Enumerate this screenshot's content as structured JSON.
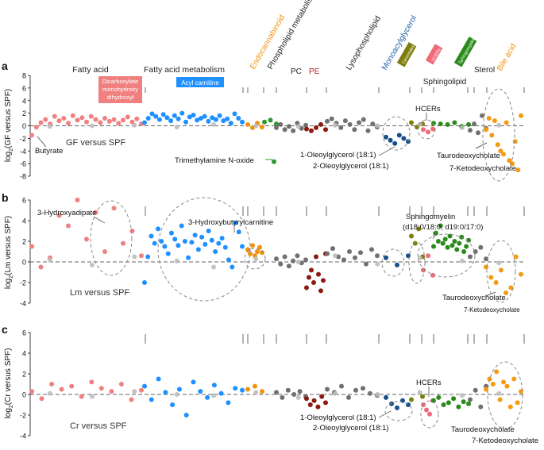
{
  "colors": {
    "fatty_acid": "#f08080",
    "fa_metabolism": "#1e90ff",
    "endocannabinoid": "#f0920f",
    "pc": "#707070",
    "pe": "#8b1a10",
    "lysophospholipid": "#707070",
    "monoacylglycerol": "#174f8a",
    "ceramide": "#7d7d0a",
    "hcer": "#f06a78",
    "sphingomyelin": "#2a8a1a",
    "sterol": "#707070",
    "bile_acid": "#f59a12",
    "other": "#bdbdbd",
    "highlight": "#2e9a2e"
  },
  "header": {
    "groups": [
      {
        "key": "fatty_acid",
        "label": "Fatty acid",
        "color": "#222222"
      },
      {
        "key": "fa_metabolism",
        "label": "Fatty acid metabolism",
        "color": "#222222"
      },
      {
        "key": "endocannabinoid",
        "label": "Endocannabinoid",
        "color": "#f0920f"
      },
      {
        "key": "phospholipid",
        "label": "Phospholipid metabolism",
        "color": "#222222"
      },
      {
        "key": "pc",
        "label": "PC",
        "color": "#222222"
      },
      {
        "key": "pe",
        "label": "PE",
        "color": "#b22222"
      },
      {
        "key": "lysophospholipid",
        "label": "Lysophospholipid",
        "color": "#222222"
      },
      {
        "key": "monoacylglycerol",
        "label": "Monoacylglycerol",
        "color": "#1f5fa8"
      },
      {
        "key": "sphingolipid",
        "label": "Sphingolipid",
        "color": "#222222"
      },
      {
        "key": "sterol",
        "label": "Sterol",
        "color": "#222222"
      },
      {
        "key": "bile_acid",
        "label": "Bile acid",
        "color": "#f0920f"
      }
    ],
    "boxes": [
      {
        "key": "dicarboxylate",
        "label": "Dicarboxylate monohydroxy dihydroxyl",
        "lines": [
          "Dicarboxylate",
          "monohydroxy",
          "dihydroxyl"
        ],
        "color": "#f08080"
      },
      {
        "key": "acyl_carnitine",
        "label": "Acyl carnitine",
        "color": "#1e90ff"
      },
      {
        "key": "ceramides",
        "label": "Ceramides",
        "color": "#7d7d0a"
      },
      {
        "key": "hcers",
        "label": "HCERs",
        "color": "#f06a78"
      },
      {
        "key": "sphingomyelins",
        "label": "Sphingomyelins",
        "color": "#2a8a1a"
      }
    ]
  },
  "chart_data": [
    {
      "panel": "a",
      "type": "scatter",
      "title": "GF versus SPF",
      "ylabel": "log2(GF versus SPF)",
      "ylabel_main": "log",
      "ylabel_sub": "2",
      "ylabel_rest": "(GF versus SPF)",
      "ylim": [
        -8,
        8
      ],
      "yticks": [
        -8,
        -6,
        -4,
        -2,
        0,
        2,
        4,
        6,
        8
      ],
      "annotations": [
        "Butyrate",
        "HCERs",
        "Trimethylamine N-oxide",
        "1-Oleoylglycerol (18:1)",
        "2-Oleoylglycerol (18:1)",
        "Taurodeoxycholate",
        "7-Ketodeoxycholate"
      ],
      "series": [
        {
          "name": "fatty_acid",
          "values": [
            -1.5,
            -0.2,
            0.5,
            1.0,
            0.3,
            1.5,
            0.8,
            1.2,
            0.4,
            1.6,
            0.9,
            1.3,
            0.6,
            1.5,
            1.0,
            0.5,
            1.2,
            0.7,
            1.0,
            0.4,
            0.9,
            1.4,
            0.6,
            1.1,
            0.3
          ]
        },
        {
          "name": "fa_metabolism",
          "values": [
            0.5,
            1.2,
            1.9,
            1.5,
            1.0,
            1.8,
            1.3,
            0.8,
            1.6,
            1.1,
            2.0,
            0.6,
            1.4,
            1.7,
            0.9,
            1.2,
            1.5,
            0.7,
            1.3,
            1.0,
            1.6,
            0.8,
            1.1,
            0.4,
            1.9,
            1.2,
            0.6
          ]
        },
        {
          "name": "endocannabinoid",
          "values": [
            0.2,
            -0.3,
            0.4,
            -0.2
          ]
        },
        {
          "name": "sphingomyelin_a",
          "values": [
            0.6,
            0.9,
            0.3
          ]
        },
        {
          "name": "pc",
          "values": [
            -0.3,
            0.2,
            -0.6,
            -0.1,
            -0.8,
            0.4,
            -0.4,
            0.1
          ]
        },
        {
          "name": "pe",
          "values": [
            -0.5,
            -0.8,
            -0.3,
            0.2,
            -0.6
          ]
        },
        {
          "name": "lysophospholipid",
          "values": [
            0.7,
            1.1,
            0.4,
            -0.3,
            0.8,
            0.2,
            -0.6,
            0.5,
            1.0,
            -0.8,
            0.3,
            -0.2
          ]
        },
        {
          "name": "monoacylglycerol",
          "values": [
            -1.8,
            -2.3,
            -2.8,
            -1.5,
            -2.0,
            -2.5
          ]
        },
        {
          "name": "ceramide",
          "values": [
            0.5,
            -0.2,
            0.3
          ]
        },
        {
          "name": "hcer",
          "values": [
            -0.6,
            -1.0,
            -0.5
          ]
        },
        {
          "name": "sphingomyelin",
          "values": [
            0.4,
            0.3,
            0.2,
            0.5,
            -0.1,
            0.2
          ]
        },
        {
          "name": "sterol",
          "values": [
            -0.7,
            0.3,
            -1.1,
            1.6,
            -0.4
          ]
        },
        {
          "name": "bile_acid",
          "values": [
            -0.6,
            1.2,
            -1.5,
            0.8,
            -3.0,
            -4.0,
            -4.5,
            0.5,
            -5.5,
            -6.0,
            -2.5,
            -7.0,
            1.6
          ]
        },
        {
          "name": "other",
          "values": [
            -0.1,
            0.0,
            0.1,
            -0.2,
            0.2,
            0.0,
            -0.1,
            0.1,
            0.0,
            0.2,
            -0.3,
            0.1
          ]
        },
        {
          "name": "tmao",
          "values": [
            -5.7
          ]
        }
      ]
    },
    {
      "panel": "b",
      "type": "scatter",
      "title": "Lm versus SPF",
      "ylabel": "log2(Lm versus SPF)",
      "ylabel_main": "log",
      "ylabel_sub": "2",
      "ylabel_rest": "(Lm versus SPF)",
      "ylim": [
        -4,
        6
      ],
      "yticks": [
        -4,
        -2,
        0,
        2,
        4,
        6
      ],
      "annotations": [
        "3-Hydroxyadipate",
        "3-Hydroxybutyrylcarnitine",
        "Sphingomyelin",
        "(d18:0/18:0, d19:0/17:0)",
        "Taurodeoxycholate",
        "7-Ketodeoxycholate"
      ],
      "series": [
        {
          "name": "fatty_acid",
          "values": [
            1.5,
            -0.5,
            0.4,
            4.5,
            3.5,
            6.0,
            2.2,
            4.8,
            1.0,
            5.2,
            1.8,
            3.0,
            0.6
          ]
        },
        {
          "name": "fa_metabolism",
          "values": [
            -2.0,
            0.5,
            2.5,
            1.8,
            3.2,
            2.0,
            1.5,
            0.8,
            2.8,
            2.2,
            1.6,
            3.5,
            2.0,
            0.4,
            1.9,
            2.6,
            1.2,
            2.4,
            1.7,
            3.0,
            2.1,
            1.0,
            1.8,
            2.3,
            1.4,
            0.2,
            -0.5,
            3.8,
            2.9,
            1.5
          ]
        },
        {
          "name": "endocannabinoid",
          "values": [
            1.2,
            0.8,
            1.6,
            0.6,
            1.0,
            1.4,
            0.9
          ]
        },
        {
          "name": "pc",
          "values": [
            0.3,
            -0.2,
            0.5,
            -0.4,
            0.1,
            0.6,
            -0.1,
            0.2
          ]
        },
        {
          "name": "pe",
          "values": [
            -2.5,
            -1.5,
            -0.8,
            -2.0,
            0.5,
            -1.2,
            -2.8,
            -1.8,
            0.8
          ]
        },
        {
          "name": "lysophospholipid",
          "values": [
            0.8,
            1.3,
            0.5,
            0.2,
            1.0,
            0.4,
            0.9,
            -0.2,
            1.2,
            0.6
          ]
        },
        {
          "name": "monoacylglycerol",
          "values": [
            0.4,
            -0.3,
            0.6
          ]
        },
        {
          "name": "ceramide",
          "values": [
            2.5,
            1.8,
            3.2,
            0.5
          ]
        },
        {
          "name": "hcer",
          "values": [
            -0.8,
            0.6,
            -1.3
          ]
        },
        {
          "name": "sphingomyelin",
          "values": [
            1.5,
            2.8,
            2.0,
            3.5,
            1.8,
            2.2,
            1.4,
            2.5,
            1.6,
            2.0,
            1.2,
            1.8,
            2.4,
            1.0,
            1.5,
            2.1
          ]
        },
        {
          "name": "sterol",
          "values": [
            0.5,
            1.0,
            1.4,
            0.3
          ]
        },
        {
          "name": "bile_acid",
          "values": [
            -0.5,
            -1.5,
            -2.0,
            -0.8,
            -3.0,
            -2.5,
            0.5,
            -1.2
          ]
        },
        {
          "name": "other",
          "values": [
            0.2,
            -0.3,
            0.5,
            0.1,
            -0.5,
            0.3,
            0.0,
            0.6,
            -0.2,
            0.4,
            0.1,
            -0.1
          ]
        }
      ]
    },
    {
      "panel": "c",
      "type": "scatter",
      "title": "Cr versus SPF",
      "ylabel": "log2(Cr versus SPF)",
      "ylabel_main": "log",
      "ylabel_sub": "2",
      "ylabel_rest": "(Cr versus SPF)",
      "ylim": [
        -4,
        6
      ],
      "yticks": [
        -4,
        -2,
        0,
        2,
        4,
        6
      ],
      "annotations": [
        "HCERs",
        "1-Oleoylglycerol (18:1)",
        "2-Oleoylglycerol (18:1)",
        "Taurodeoxycholate",
        "7-Ketodeoxycholate"
      ],
      "series": [
        {
          "name": "fatty_acid",
          "values": [
            0.3,
            -0.4,
            1.0,
            0.5,
            0.8,
            -0.2,
            1.2,
            0.6,
            0.3,
            1.0,
            -0.5,
            0.4
          ]
        },
        {
          "name": "fa_metabolism",
          "values": [
            0.8,
            -0.5,
            1.5,
            0.2,
            -1.0,
            0.5,
            -2.0,
            1.2,
            0.3,
            -0.3,
            0.9,
            0.1,
            -0.8,
            0.6,
            0.4
          ]
        },
        {
          "name": "endocannabinoid",
          "values": [
            0.5,
            0.8,
            0.3
          ]
        },
        {
          "name": "pc",
          "values": [
            0.2,
            -0.3,
            0.4,
            0.0,
            0.3,
            -0.2
          ]
        },
        {
          "name": "pe",
          "values": [
            -0.4,
            -1.0,
            -0.6,
            -1.2,
            -0.2,
            -0.8
          ]
        },
        {
          "name": "lysophospholipid",
          "values": [
            0.5,
            0.2,
            0.8,
            -0.3,
            0.4,
            0.6,
            0.1,
            -0.1
          ]
        },
        {
          "name": "monoacylglycerol",
          "values": [
            -0.3,
            -0.9,
            -1.3,
            -0.6,
            -1.0
          ]
        },
        {
          "name": "ceramide",
          "values": [
            -0.5,
            -0.2
          ]
        },
        {
          "name": "hcer",
          "values": [
            -1.0,
            -1.5,
            -1.9,
            -0.6
          ]
        },
        {
          "name": "sphingomyelin",
          "values": [
            -0.6,
            -0.3,
            -1.0,
            -0.8,
            -0.4,
            -1.2,
            -0.7,
            -0.9
          ]
        },
        {
          "name": "sterol",
          "values": [
            -0.5,
            0.4,
            -1.2,
            0.8
          ]
        },
        {
          "name": "bile_acid",
          "values": [
            0.5,
            1.5,
            1.0,
            2.2,
            -0.5,
            1.2,
            0.8,
            -1.2,
            1.5,
            -0.8,
            0.3
          ]
        },
        {
          "name": "other",
          "values": [
            0.1,
            -0.2,
            0.3,
            0.0,
            -0.1,
            0.2,
            -0.3,
            0.1,
            0.0,
            0.2,
            -0.1,
            0.1
          ]
        }
      ]
    }
  ]
}
